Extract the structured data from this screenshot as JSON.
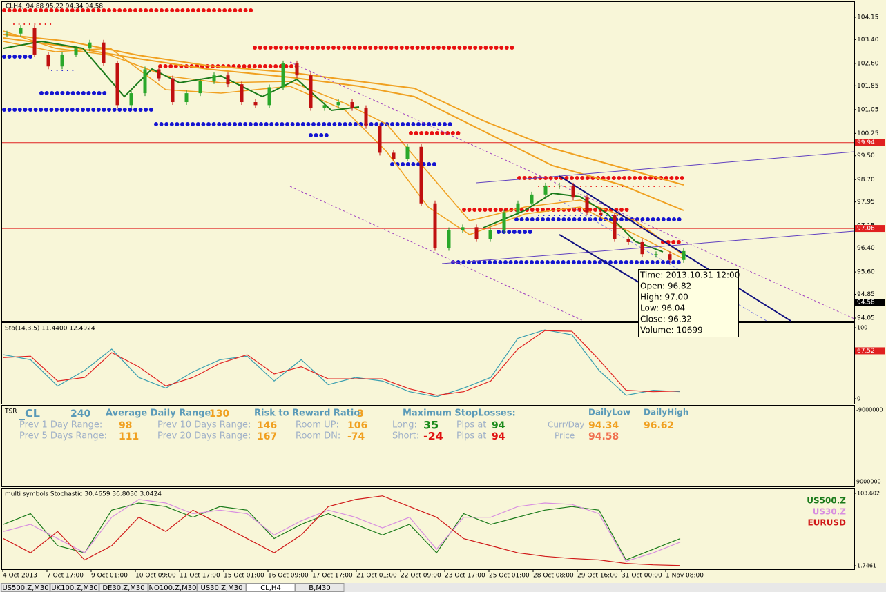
{
  "main": {
    "header": "CLH4, 94.88 95.22 94.34 94.58",
    "ylim": [
      94.05,
      104.15
    ],
    "yticks": [
      104.15,
      {
        "value": 103.4,
        "label": "103.40"
      },
      {
        "value": 102.6,
        "label": "102.60"
      },
      101.85,
      101.05,
      100.25,
      {
        "value": 99.5,
        "label": "99.50"
      },
      {
        "value": 98.7,
        "label": "98.70"
      },
      97.95,
      97.15,
      {
        "value": 96.4,
        "label": "96.40"
      },
      {
        "value": 95.6,
        "label": "95.60"
      },
      94.85,
      94.05
    ],
    "levels": [
      99.94,
      97.06
    ],
    "current_price": 94.58,
    "closes": [
      103.6,
      103.8,
      102.9,
      102.5,
      102.9,
      103.1,
      103.3,
      102.6,
      101.2,
      101.6,
      102.4,
      102.1,
      101.3,
      101.6,
      102.0,
      102.2,
      101.9,
      101.3,
      101.2,
      101.8,
      102.6,
      102.2,
      101.1,
      101.2,
      101.3,
      101.1,
      100.5,
      99.6,
      99.4,
      99.8,
      97.9,
      96.4,
      97.0,
      97.1,
      96.7,
      97.0,
      97.6,
      97.9,
      98.2,
      98.5,
      98.5,
      98.1,
      97.6,
      97.5,
      96.7,
      96.6,
      96.2,
      96.2,
      96.0,
      96.3
    ],
    "tooltip": [
      "Time: 2013.10.31 12:00",
      "Open: 96.82",
      "High: 97.00",
      "Low:  96.04",
      "Close: 96.32",
      "Volume: 10699"
    ]
  },
  "stoch": {
    "header": "Sto(14,3,5) 11.4400 12.4924",
    "ylim": [
      0,
      100
    ],
    "yticks": [
      100,
      0
    ],
    "level": 67.52,
    "series": [
      {
        "color": "#3a9fb0",
        "values": [
          62,
          55,
          18,
          40,
          70,
          30,
          15,
          38,
          55,
          60,
          25,
          55,
          20,
          30,
          25,
          10,
          3,
          15,
          30,
          85,
          97,
          90,
          40,
          5,
          12,
          10
        ]
      },
      {
        "color": "#e02020",
        "values": [
          58,
          60,
          25,
          30,
          65,
          45,
          18,
          30,
          50,
          62,
          35,
          45,
          28,
          28,
          28,
          14,
          5,
          10,
          25,
          70,
          96,
          95,
          55,
          12,
          10,
          11
        ]
      }
    ]
  },
  "tsr": {
    "name": "TSR",
    "symbol": "_CL",
    "period": "240",
    "adr_label": "Average Daily Range:",
    "adr": "130",
    "p1_label": "Prev 1 Day Range:",
    "p1": "98",
    "p5_label": "Prev 5 Days Range:",
    "p5": "111",
    "p10_label": "Prev 10 Days Range:",
    "p10": "146",
    "p20_label": "Prev 20 Days Range:",
    "p20": "167",
    "rr_label": "Risk to Reward Ratio:",
    "rr": "3",
    "up_label": "Room UP:",
    "up": "106",
    "dn_label": "Room DN:",
    "dn": "-74",
    "msl_label": "Maximum StopLosses:",
    "long_label": "Long:",
    "long": "35",
    "long_pips_label": "Pips at",
    "long_pips": "94",
    "short_label": "Short:",
    "short": "-24",
    "short_pips_label": "Pips at",
    "short_pips": "94",
    "dlow_label": "DailyLow",
    "dhigh_label": "DailyHigh",
    "curr_label": "Curr/Day",
    "curr_low": "94.34",
    "curr_high": "96.62",
    "price_label": "Price",
    "price": "94.58",
    "scale_top": "-9000000",
    "scale_bottom": "9000000"
  },
  "multi": {
    "header": "multi symbols Stochastic 30.4659 36.8030 3.0424",
    "ylim": [
      1.7461,
      103.602
    ],
    "yticks": [
      103.602,
      1.7461
    ],
    "series": [
      {
        "name": "US500.Z",
        "color": "#1a7a1a",
        "values": [
          60,
          75,
          30,
          20,
          80,
          90,
          85,
          70,
          85,
          80,
          40,
          60,
          75,
          60,
          45,
          60,
          20,
          75,
          60,
          70,
          80,
          85,
          80,
          10,
          25,
          40
        ]
      },
      {
        "name": "US30.Z",
        "color": "#d88ee0",
        "values": [
          50,
          60,
          40,
          20,
          70,
          95,
          90,
          75,
          80,
          75,
          45,
          65,
          80,
          70,
          55,
          70,
          25,
          70,
          70,
          85,
          90,
          88,
          75,
          8,
          20,
          35
        ]
      },
      {
        "name": "EURUSD",
        "color": "#d01818",
        "values": [
          40,
          20,
          50,
          10,
          30,
          70,
          50,
          80,
          60,
          40,
          20,
          45,
          85,
          95,
          100,
          85,
          70,
          40,
          30,
          20,
          15,
          12,
          10,
          5,
          3,
          2
        ]
      }
    ]
  },
  "time_axis": [
    "4 Oct 2013",
    "7 Oct 17:00",
    "9 Oct 01:00",
    "10 Oct 09:00",
    "11 Oct 17:00",
    "15 Oct 01:00",
    "16 Oct 09:00",
    "17 Oct 17:00",
    "21 Oct 01:00",
    "22 Oct 09:00",
    "23 Oct 17:00",
    "25 Oct 01:00",
    "28 Oct 08:00",
    "29 Oct 16:00",
    "31 Oct 00:00",
    "1 Nov 08:00"
  ],
  "tabs": [
    "US500.Z,M30",
    "UK100.Z,M30",
    "DE30.Z,M30",
    "NO100.Z,M30",
    "US30.Z,M30",
    "CL,H4",
    "B,M30"
  ],
  "active_tab": 5
}
